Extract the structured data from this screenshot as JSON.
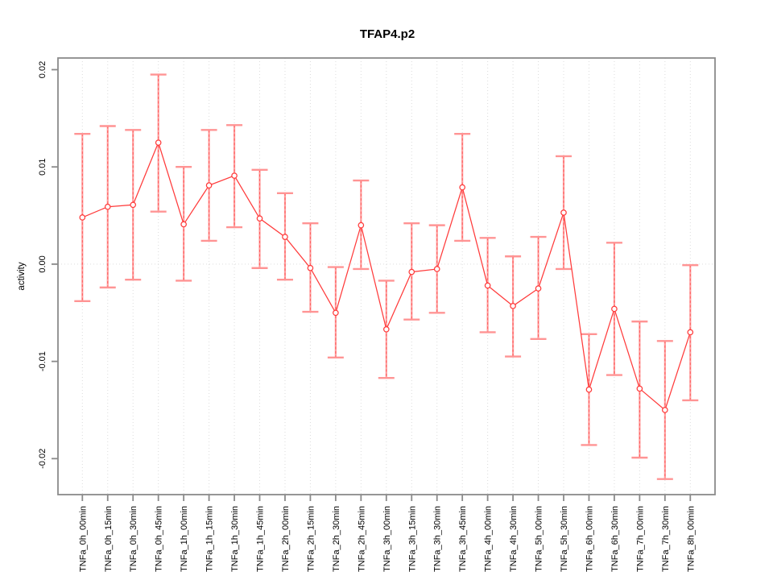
{
  "chart_data": {
    "type": "line",
    "title": "TFAP4.p2",
    "xlabel": "",
    "ylabel": "activity",
    "legend": "none",
    "grid": "vertical dotted gridline at each category; horizontal dotted gridline at y=0",
    "categories": [
      "TNFa_0h_00min",
      "TNFa_0h_15min",
      "TNFa_0h_30min",
      "TNFa_0h_45min",
      "TNFa_1h_00min",
      "TNFa_1h_15min",
      "TNFa_1h_30min",
      "TNFa_1h_45min",
      "TNFa_2h_00min",
      "TNFa_2h_15min",
      "TNFa_2h_30min",
      "TNFa_2h_45min",
      "TNFa_3h_00min",
      "TNFa_3h_15min",
      "TNFa_3h_30min",
      "TNFa_3h_45min",
      "TNFa_4h_00min",
      "TNFa_4h_30min",
      "TNFa_5h_00min",
      "TNFa_5h_30min",
      "TNFa_6h_00min",
      "TNFa_6h_30min",
      "TNFa_7h_00min",
      "TNFa_7h_30min",
      "TNFa_8h_00min"
    ],
    "series": [
      {
        "name": "activity",
        "values": [
          0.0048,
          0.0059,
          0.0061,
          0.0125,
          0.0041,
          0.0081,
          0.0091,
          0.0047,
          0.0028,
          -0.0004,
          -0.005,
          0.004,
          -0.0067,
          -0.0008,
          -0.0005,
          0.0079,
          -0.0022,
          -0.0043,
          -0.0025,
          0.0053,
          -0.0129,
          -0.0046,
          -0.0128,
          -0.015,
          -0.007
        ],
        "error_upper": [
          0.0134,
          0.0142,
          0.0138,
          0.0195,
          0.01,
          0.0138,
          0.0143,
          0.0097,
          0.0073,
          0.0042,
          -0.0003,
          0.0086,
          -0.0017,
          0.0042,
          0.004,
          0.0134,
          0.0027,
          0.0008,
          0.0028,
          0.0111,
          -0.0072,
          0.0022,
          -0.0059,
          -0.0079,
          -0.0001
        ],
        "error_lower": [
          -0.0038,
          -0.0024,
          -0.0016,
          0.0054,
          -0.0017,
          0.0024,
          0.0038,
          -0.0004,
          -0.0016,
          -0.0049,
          -0.0096,
          -0.0005,
          -0.0117,
          -0.0057,
          -0.005,
          0.0024,
          -0.007,
          -0.0095,
          -0.0077,
          -0.0005,
          -0.0186,
          -0.0114,
          -0.0199,
          -0.0221,
          -0.014
        ]
      }
    ],
    "yticks": [
      0.02,
      0.01,
      0.0,
      -0.01,
      -0.02
    ],
    "ylim": [
      -0.0237,
      0.0212
    ],
    "colors": {
      "line": "#ff3b3b",
      "marker_stroke": "#ff3b3b",
      "marker_fill": "#ffffff",
      "errorbar_solid": "#ff9e9e",
      "errorbar_dash": "#ff5b5b",
      "errorbar_cap": "#ff9494",
      "axis_box": "#8a8a8a",
      "tick": "#8a8a8a",
      "gridline": "#dcdcdc",
      "text": "#000000",
      "background": "#ffffff"
    }
  }
}
